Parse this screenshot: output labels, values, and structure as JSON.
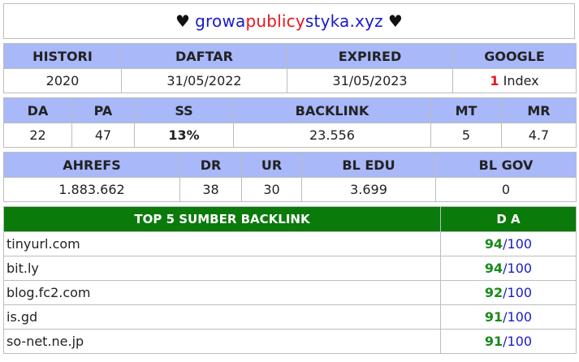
{
  "header": {
    "heart_left": "♥",
    "domain_part1": "growa",
    "domain_part2": "publicy",
    "domain_part3": "styka.xyz",
    "heart_right": "♥"
  },
  "table1": {
    "headers": [
      "HISTORI",
      "DAFTAR",
      "EXPIRED",
      "GOOGLE"
    ],
    "values": {
      "histori": "2020",
      "daftar": "31/05/2022",
      "expired": "31/05/2023",
      "google_count": "1",
      "google_label": "Index"
    }
  },
  "table2": {
    "headers": [
      "DA",
      "PA",
      "SS",
      "BACKLINK",
      "MT",
      "MR"
    ],
    "values": {
      "da": "22",
      "pa": "47",
      "ss": "13%",
      "backlink": "23.556",
      "mt": "5",
      "mr": "4.7"
    }
  },
  "table3": {
    "headers": [
      "AHREFS",
      "DR",
      "UR",
      "BL EDU",
      "BL GOV"
    ],
    "values": {
      "ahrefs": "1.883.662",
      "dr": "38",
      "ur": "30",
      "bl_edu": "3.699",
      "bl_gov": "0"
    }
  },
  "top5": {
    "header_title": "TOP 5 SUMBER BACKLINK",
    "header_da": "D A",
    "rows": [
      {
        "site": "tinyurl.com",
        "da": "94",
        "max": "/100"
      },
      {
        "site": "bit.ly",
        "da": "94",
        "max": "/100"
      },
      {
        "site": "blog.fc2.com",
        "da": "92",
        "max": "/100"
      },
      {
        "site": "is.gd",
        "da": "91",
        "max": "/100"
      },
      {
        "site": "so-net.ne.jp",
        "da": "91",
        "max": "/100"
      }
    ]
  },
  "colors": {
    "header_blue": "#a8b8f8",
    "top5_green": "#0a7a0a",
    "domain_blue": "#1a1acc",
    "domain_red": "#e8141c",
    "ss_teal": "#1ab8b8"
  }
}
